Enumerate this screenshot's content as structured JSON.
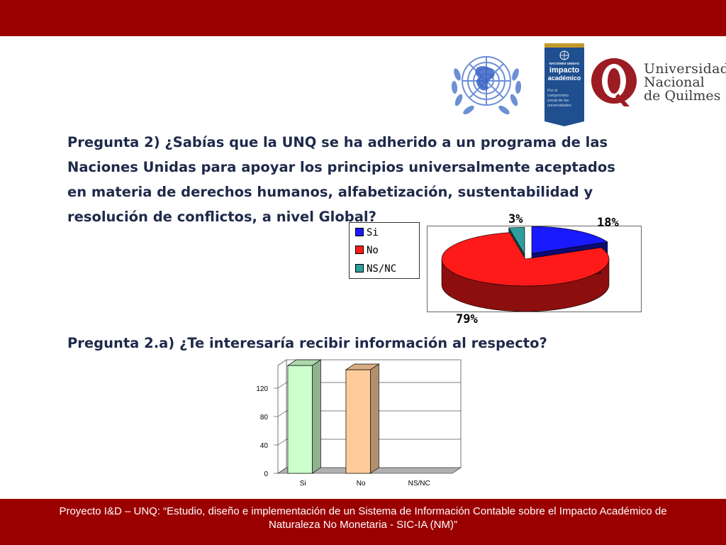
{
  "question1": {
    "lines": [
      "Pregunta 2) ¿Sabías que la UNQ se ha adherido a un programa de las",
      "Naciones Unidas para apoyar los principios universalmente aceptados",
      "en materia de derechos humanos, alfabetización, sustentabilidad y",
      "resolución de conflictos, a nivel Global?"
    ]
  },
  "question2": {
    "text": "Pregunta 2.a) ¿Te interesaría recibir información al respecto?"
  },
  "logos": {
    "un_emblem": "un-emblem-icon",
    "impacto": {
      "top": "NACIONES UNIDAS",
      "title1": "impacto",
      "title2": "académico",
      "sub1": "Por el",
      "sub2": "compromiso",
      "sub3": "social de las",
      "sub4": "universidades"
    },
    "unq": {
      "line1": "Universidad",
      "line2": "Nacional",
      "line3": "de Quilmes"
    }
  },
  "colors": {
    "brand_red": "#9b0000",
    "si": "#1a1aff",
    "no": "#ff1a1a",
    "nsnc": "#2e9e9e",
    "bar_si": "#ccffcc",
    "bar_no": "#ffcc99"
  },
  "chart_data": [
    {
      "type": "pie",
      "categories": [
        "Si",
        "No",
        "NS/NC"
      ],
      "values": [
        18,
        79,
        3
      ],
      "data_labels": [
        "18%",
        "79%",
        "3%"
      ],
      "legend_position": "left",
      "style": "3d-exploded"
    },
    {
      "type": "bar",
      "categories": [
        "Si",
        "No",
        "NS/NC"
      ],
      "values": [
        152,
        146,
        0
      ],
      "ylim": [
        0,
        152
      ],
      "yticks": [
        "0",
        "40",
        "80",
        "120"
      ],
      "style": "3d",
      "grid": true
    }
  ],
  "footer": {
    "line1": "Proyecto I&D – UNQ: “Estudio, diseño e implementación de un Sistema de Información Contable sobre el Impacto Académico de",
    "line2": "Naturaleza No Monetaria - SIC-IA (NM)”"
  }
}
